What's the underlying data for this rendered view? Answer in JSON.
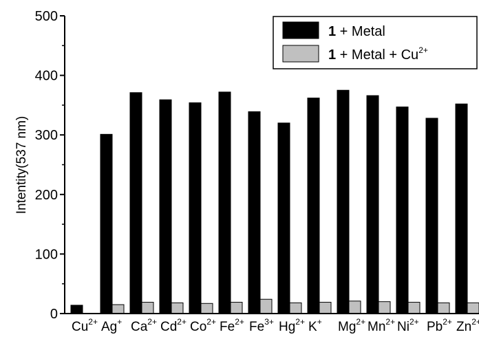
{
  "chart_data": {
    "type": "bar",
    "title": "",
    "xlabel": "",
    "ylabel": "Intentity(537 nm)",
    "ylim": [
      0,
      500
    ],
    "yticks": [
      0,
      100,
      200,
      300,
      400,
      500
    ],
    "grid": false,
    "legend_position": "top-right",
    "categories": [
      {
        "base": "Cu",
        "sup": "2+"
      },
      {
        "base": "Ag",
        "sup": "+"
      },
      {
        "base": "Ca",
        "sup": "2+"
      },
      {
        "base": "Cd",
        "sup": "2+"
      },
      {
        "base": "Co",
        "sup": "2+"
      },
      {
        "base": "Fe",
        "sup": "2+"
      },
      {
        "base": "Fe",
        "sup": "3+"
      },
      {
        "base": "Hg",
        "sup": "2+"
      },
      {
        "base": "K",
        "sup": "+"
      },
      {
        "base": "Mg",
        "sup": "2+"
      },
      {
        "base": "Mn",
        "sup": "2+"
      },
      {
        "base": "Ni",
        "sup": "2+"
      },
      {
        "base": "Pb",
        "sup": "2+"
      },
      {
        "base": "Zn",
        "sup": "2+"
      }
    ],
    "series": [
      {
        "legend_bold": "1",
        "legend_rest": " + Metal",
        "legend_sup": "",
        "color": "#000000",
        "values": [
          14,
          301,
          371,
          359,
          354,
          372,
          339,
          320,
          362,
          375,
          366,
          347,
          328,
          352
        ]
      },
      {
        "legend_bold": "1",
        "legend_rest": " + Metal + Cu",
        "legend_sup": "2+",
        "color": "#c0c0c0",
        "values": [
          0,
          15,
          19,
          18,
          17,
          19,
          24,
          18,
          19,
          21,
          20,
          19,
          18,
          18
        ]
      }
    ]
  }
}
